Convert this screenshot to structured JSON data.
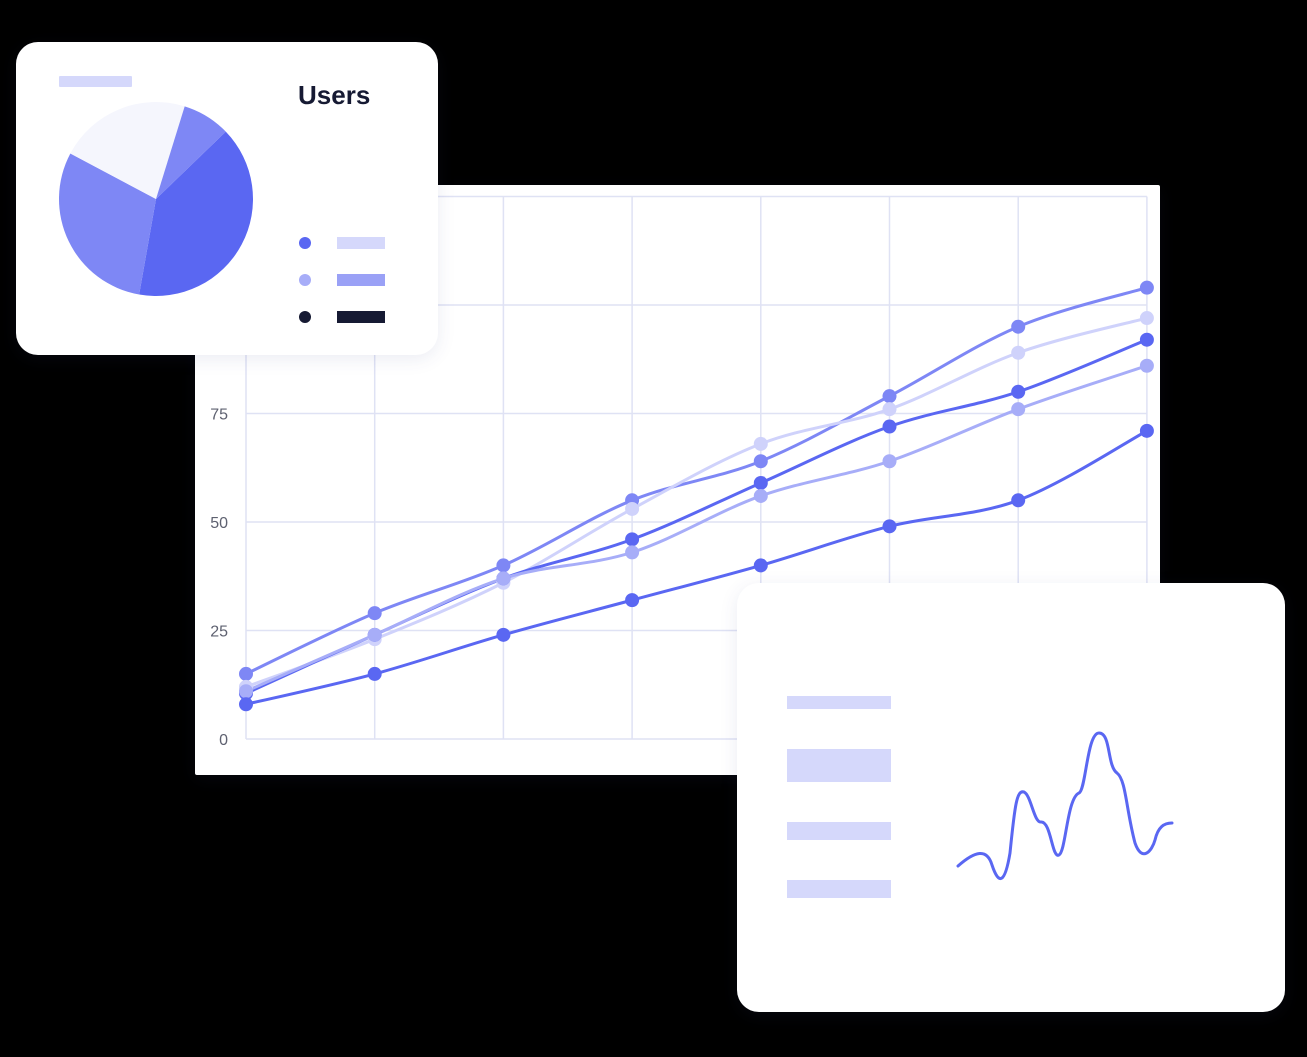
{
  "colors": {
    "primary": "#5a67f2",
    "medium": "#7e87f5",
    "light": "#a7adf8",
    "pale": "#cfd2fb",
    "faint": "#f5f6fd",
    "dark": "#161a33",
    "grid": "#dfe2f4",
    "axis_text": "#5e6170"
  },
  "pie_card": {
    "title": "Users",
    "legend": [
      {
        "dot_color": "#5a67f2",
        "bar_color": "#d5d8fb"
      },
      {
        "dot_color": "#a7adf8",
        "bar_color": "#9aa1f6"
      },
      {
        "dot_color": "#161a33",
        "bar_color": "#161a33"
      }
    ]
  },
  "wave_card": {
    "placeholder_rows": 4
  },
  "chart_data": [
    {
      "type": "line",
      "x": [
        1,
        2,
        3,
        4,
        5,
        6,
        7,
        8
      ],
      "yticks": [
        0,
        25,
        50,
        75
      ],
      "ylim": [
        0,
        125
      ],
      "grid": true,
      "series": [
        {
          "color": "#7e87f5",
          "values": [
            15,
            29,
            40,
            55,
            64,
            79,
            95,
            104
          ]
        },
        {
          "color": "#cfd2fb",
          "values": [
            12,
            23,
            36,
            53,
            68,
            76,
            89,
            97
          ]
        },
        {
          "color": "#5a67f2",
          "values": [
            10.5,
            24,
            37,
            46,
            59,
            72,
            80,
            92
          ]
        },
        {
          "color": "#a7adf8",
          "values": [
            11,
            24,
            37,
            43,
            56,
            64,
            76,
            86
          ]
        },
        {
          "color": "#5a67f2",
          "values": [
            8,
            15,
            24,
            32,
            40,
            49,
            55,
            71
          ]
        }
      ]
    },
    {
      "type": "pie",
      "values": [
        40,
        30,
        22,
        8
      ],
      "colors": [
        "#5a67f2",
        "#7e87f5",
        "#f5f6fd",
        "#7e87f5"
      ]
    }
  ]
}
